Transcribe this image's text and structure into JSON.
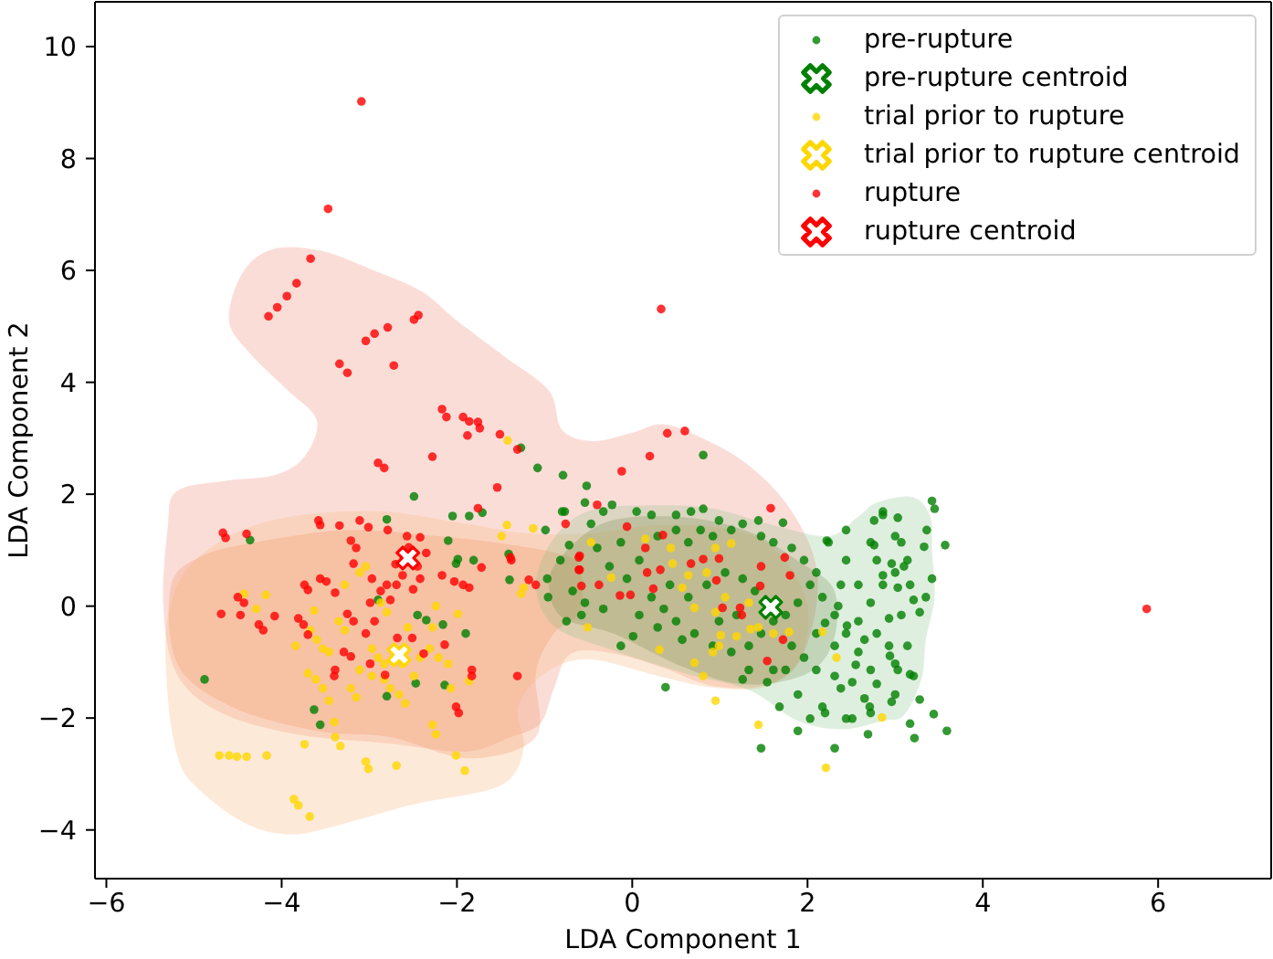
{
  "chart_data": {
    "type": "scatter",
    "xlabel": "LDA Component 1",
    "ylabel": "LDA Component 2",
    "xlim": [
      -6.13,
      7.29
    ],
    "ylim": [
      -4.87,
      10.8
    ],
    "xticks": [
      {
        "value": -6,
        "label": "−6"
      },
      {
        "value": -4,
        "label": "−4"
      },
      {
        "value": -2,
        "label": "−2"
      },
      0,
      2,
      4,
      6
    ],
    "yticks": [
      {
        "value": -4,
        "label": "−4"
      },
      {
        "value": -2,
        "label": "−2"
      },
      0,
      2,
      4,
      6,
      8,
      10
    ],
    "legend": "top right",
    "series": [
      {
        "name": "pre-rupture",
        "color": "#008000",
        "marker": "circle",
        "x": [
          -4.88,
          -4.36,
          -2.49,
          -2.8,
          -2.05,
          -1.86,
          -1.71,
          -1.27,
          -1.08,
          -0.79,
          -0.8,
          -0.72,
          -2.1,
          -1.99,
          -2.01,
          -1.81,
          -1.41,
          -1.4,
          -0.96,
          -0.97,
          -0.75,
          -0.58,
          -2.9,
          -2.45,
          -2.35,
          -2.16,
          -1.9,
          -2.14,
          -2.47,
          -2.8,
          -3.63,
          -3.56,
          0.81,
          -0.52,
          -0.77,
          -0.54,
          -0.33,
          -0.23,
          0.05,
          0.22,
          0.5,
          0.67,
          0.81,
          0.99,
          1.44,
          1.72,
          -0.99,
          -0.13,
          0.01,
          0.38,
          1.47,
          1.89,
          2.31,
          2.69,
          3.17,
          3.22,
          3.59,
          3.42,
          3.45,
          3.57,
          1.26,
          3.36,
          3.33,
          3.28,
          3.21,
          3.14,
          3.17,
          3.28,
          3.44,
          2.86,
          3.03,
          2.76,
          3.07,
          2.76,
          2.22,
          3.1,
          3.17,
          2.96,
          2.86,
          3.03,
          2.93,
          2.79,
          2.94,
          3.03,
          2.79,
          2.96,
          2.65,
          2.71,
          2.51,
          2.38,
          2.2,
          -0.47,
          -0.4,
          -0.26,
          -0.06,
          0.08,
          0.29,
          0.5,
          0.64,
          0.78,
          0.92,
          1.13,
          1.26,
          1.47,
          1.61,
          1.82,
          1.96,
          2.03,
          1.89,
          1.75,
          1.61,
          1.47,
          1.33,
          1.13,
          0.92,
          0.71,
          0.5,
          0.36,
          0.22,
          0.43,
          0.64,
          0.85,
          1.06,
          1.26,
          1.4,
          1.19,
          0.99,
          0.57,
          0.29,
          -0.68,
          -0.82,
          -0.54,
          -0.33,
          -0.13,
          0.08,
          2.17,
          2.31,
          2.44,
          2.58,
          2.72,
          2.86,
          3.0,
          3.14,
          3.07,
          2.93,
          2.72,
          2.51,
          2.31,
          2.1,
          1.96,
          1.75,
          1.54,
          1.89,
          2.17,
          2.44,
          2.72,
          3.0,
          3.21,
          2.86,
          3.0,
          2.72,
          2.79,
          2.24,
          2.44,
          2.1,
          2.38,
          2.58,
          2.31,
          2.58,
          2.1,
          1.82,
          1.61,
          1.33,
          1.68,
          2.03,
          3.0,
          3.35,
          3.42,
          2.44,
          2.45,
          2.65,
          2.2,
          2.55,
          2.35
        ],
        "values": [
          -1.31,
          1.18,
          1.96,
          1.55,
          1.61,
          1.61,
          1.67,
          2.83,
          2.47,
          2.34,
          1.69,
          1.09,
          1.17,
          0.84,
          0.76,
          0.82,
          0.93,
          0.47,
          0.16,
          0.49,
          -0.27,
          -0.16,
          0.11,
          -0.16,
          -0.25,
          -0.33,
          -0.49,
          -1.41,
          -1.38,
          -1.61,
          -1.85,
          -2.12,
          2.7,
          2.15,
          1.69,
          1.85,
          1.69,
          1.81,
          1.69,
          1.63,
          1.63,
          1.69,
          1.74,
          1.53,
          1.53,
          1.49,
          1.36,
          -0.71,
          -0.54,
          -1.45,
          -2.54,
          -2.23,
          -2.54,
          -2.29,
          -2.1,
          -2.36,
          -2.23,
          1.88,
          1.74,
          1.09,
          -1.31,
          1.36,
          1.06,
          -0.11,
          0.11,
          -0.71,
          -1.22,
          -1.67,
          -1.93,
          1.63,
          1.58,
          1.53,
          1.14,
          1.09,
          1.17,
          0.71,
          0.38,
          0.76,
          0.55,
          0.33,
          -0.22,
          -0.49,
          -0.89,
          -1.14,
          -1.39,
          -1.71,
          -1.65,
          -1.8,
          -2.01,
          -1.47,
          -1.91,
          1.47,
          1.04,
          0.71,
          0.49,
          0.82,
          1.25,
          1.36,
          1.14,
          1.36,
          1.25,
          1.36,
          1.47,
          1.25,
          1.14,
          1.04,
          0.82,
          0.38,
          0.06,
          -0.16,
          -0.27,
          -0.49,
          -0.71,
          -0.82,
          -0.71,
          -0.49,
          -0.27,
          -0.05,
          0.16,
          0.38,
          0.16,
          0.38,
          0.6,
          0.49,
          0.27,
          -0.16,
          -0.27,
          -0.6,
          -0.38,
          0.27,
          0.82,
          0.06,
          -0.05,
          1.14,
          -0.16,
          0.16,
          -0.16,
          -0.49,
          -0.27,
          0.06,
          0.38,
          0.6,
          0.82,
          -0.16,
          -0.71,
          -1.14,
          -1.36,
          -1.25,
          -1.14,
          -0.92,
          -1.14,
          -1.36,
          -1.58,
          -1.8,
          -2.01,
          -1.91,
          -1.58,
          -1.25,
          1.69,
          1.25,
          1.14,
          0.82,
          1.14,
          1.36,
          0.6,
          0.38,
          0.38,
          -0.71,
          -0.82,
          -0.49,
          -0.71,
          -1.14,
          -1.14,
          -1.8,
          -2.01,
          -1.03,
          0.16,
          0.49,
          0.82,
          -0.35,
          -0.6,
          -0.3,
          -1.05,
          0.0
        ]
      },
      {
        "name": "pre-rupture centroid",
        "color": "#008000",
        "marker": "cross",
        "x": [
          1.58
        ],
        "values": [
          -0.02
        ]
      },
      {
        "name": "trial prior to rupture",
        "color": "#ffd700",
        "marker": "circle",
        "x": [
          -4.71,
          -4.6,
          -4.51,
          -4.4,
          -4.17,
          -3.74,
          -3.86,
          -3.81,
          -3.68,
          -3.4,
          -3.39,
          -3.33,
          -3.04,
          -3.01,
          -2.69,
          -2.28,
          -2.24,
          -2.01,
          -1.91,
          -4.43,
          -4.29,
          -4.18,
          -3.63,
          -3.67,
          -3.6,
          -3.53,
          -3.7,
          -3.61,
          -3.53,
          -3.46,
          -3.35,
          -3.28,
          -3.21,
          -3.15,
          -3.28,
          -3.11,
          -3.04,
          -2.87,
          -2.8,
          -2.97,
          -2.9,
          -2.97,
          -2.83,
          -2.76,
          -2.66,
          -2.59,
          -2.42,
          -2.31,
          -2.21,
          -2.1,
          -2.24,
          -1.99,
          -2.56,
          -2.07,
          -1.86,
          -1.49,
          -1.43,
          -1.13,
          -1.42,
          -1.24,
          -1.27,
          -3.84,
          -0.47,
          0.15,
          0.44,
          0.95,
          1.13,
          -0.24,
          0.46,
          0.64,
          0.85,
          0.57,
          0.71,
          0.95,
          1.06,
          1.33,
          1.19,
          1.35,
          1.44,
          1.61,
          1.79,
          2.17,
          2.33,
          1.01,
          0.99,
          0.92,
          0.71,
          0.81,
          0.31,
          0.95,
          1.44,
          2.21,
          -0.51,
          2.85,
          -3.46,
          -3.11,
          -2.83,
          -2.49,
          -2.62,
          -2.28
        ],
        "values": [
          -2.67,
          -2.67,
          -2.69,
          -2.69,
          -2.67,
          -2.47,
          -3.45,
          -3.56,
          -3.76,
          -2.07,
          -2.34,
          -2.5,
          -2.78,
          -2.91,
          -2.85,
          -2.12,
          -2.29,
          -2.67,
          -2.94,
          0.22,
          -0.05,
          0.2,
          -0.08,
          -0.43,
          -0.6,
          -0.76,
          -1.2,
          -1.31,
          -1.47,
          -1.69,
          -0.27,
          -0.43,
          -1.47,
          -1.63,
          0.38,
          0.6,
          0.71,
          0.06,
          -0.11,
          -0.76,
          -0.92,
          -1.25,
          -1.31,
          -1.47,
          -1.58,
          -1.74,
          -0.92,
          -0.76,
          -0.92,
          -1.03,
          0.0,
          -0.14,
          -0.38,
          -1.47,
          -1.34,
          1.25,
          1.45,
          1.39,
          2.96,
          0.33,
          0.22,
          -0.71,
          1.14,
          1.2,
          1.04,
          1.04,
          1.12,
          0.51,
          0.76,
          0.55,
          0.6,
          0.33,
          -0.03,
          -0.11,
          0.16,
          0.06,
          -0.54,
          -0.41,
          -0.38,
          -0.49,
          -0.46,
          -0.46,
          -0.92,
          -0.52,
          -0.71,
          -0.82,
          -1.01,
          -1.25,
          -0.78,
          -1.69,
          -2.12,
          -2.89,
          -0.38,
          -1.99,
          -0.82,
          -1.14,
          -1.03,
          -1.25,
          -1.03,
          -0.38
        ]
      },
      {
        "name": "trial prior to rupture centroid",
        "color": "#ffd700",
        "marker": "cross",
        "x": [
          -2.66
        ],
        "values": [
          -0.87
        ]
      },
      {
        "name": "rupture",
        "color": "#ff0000",
        "marker": "circle",
        "x": [
          -3.09,
          -3.47,
          -3.67,
          -3.83,
          -3.94,
          -4.05,
          -4.15,
          -3.04,
          -2.94,
          -2.79,
          -2.49,
          -2.44,
          -3.34,
          -3.25,
          -2.72,
          -2.17,
          -2.12,
          -1.93,
          -1.86,
          -1.76,
          -1.74,
          -1.88,
          -1.51,
          -1.31,
          -2.28,
          0.33,
          5.87,
          0.4,
          0.6,
          0.2,
          -0.12,
          -0.4,
          -0.76,
          1.58,
          -0.06,
          0.35,
          -0.6,
          -0.6,
          0.15,
          0.32,
          0.17,
          0.67,
          0.81,
          0.99,
          1.47,
          1.74,
          1.8,
          0.96,
          1.46,
          -0.14,
          -0.02,
          -0.38,
          0.24,
          1.03,
          1.23,
          1.25,
          1.72,
          1.54,
          -2.9,
          -2.83,
          -1.54,
          -1.76,
          -4.67,
          -4.64,
          -4.4,
          -3.58,
          -3.56,
          -3.34,
          -3.11,
          -3.01,
          -2.79,
          -3.21,
          -3.15,
          -3.18,
          -2.57,
          -2.42,
          -2.45,
          -2.42,
          -2.62,
          -2.69,
          -2.97,
          -2.87,
          -2.99,
          -2.8,
          -2.76,
          -2.17,
          -2.03,
          -1.93,
          -1.86,
          -1.72,
          -1.39,
          -1.38,
          -1.18,
          -1.1,
          -0.61,
          -0.61,
          -0.58,
          -3.74,
          -3.7,
          -3.56,
          -3.49,
          -3.39,
          -4.5,
          -4.43,
          -4.47,
          -4.69,
          -4.26,
          -4.21,
          -4.08,
          -3.81,
          -3.75,
          -3.7,
          -3.25,
          -3.18,
          -3.04,
          -2.94,
          -3.29,
          -3.21,
          -3.39,
          -3.4,
          -2.68,
          -2.51,
          -2.38,
          -2.14,
          -2.99,
          -2.82,
          -1.83,
          -1.83,
          -1.31,
          -2.01,
          -1.98,
          -2.55,
          -2.35,
          -2.7,
          -2.5
        ],
        "values": [
          9.02,
          7.1,
          6.21,
          5.77,
          5.54,
          5.34,
          5.18,
          4.74,
          4.87,
          4.98,
          5.12,
          5.2,
          4.33,
          4.17,
          4.3,
          3.52,
          3.38,
          3.38,
          3.3,
          3.29,
          3.18,
          3.05,
          3.07,
          2.8,
          2.67,
          5.31,
          -0.05,
          3.09,
          3.13,
          2.68,
          2.41,
          1.81,
          1.47,
          1.75,
          1.42,
          1.27,
          0.9,
          0.65,
          1.04,
          0.65,
          0.6,
          0.76,
          0.84,
          0.85,
          0.71,
          0.87,
          0.55,
          0.46,
          0.36,
          0.19,
          0.2,
          0.38,
          0.31,
          -0.03,
          -0.03,
          -0.16,
          -0.6,
          -0.98,
          2.56,
          2.47,
          2.12,
          1.75,
          1.31,
          1.22,
          1.29,
          1.53,
          1.45,
          1.44,
          1.53,
          1.41,
          1.36,
          1.17,
          1.04,
          0.76,
          1.25,
          1.23,
          0.71,
          0.49,
          0.55,
          0.38,
          0.49,
          0.27,
          0.06,
          0.38,
          0.11,
          0.55,
          0.44,
          0.38,
          0.33,
          0.69,
          0.87,
          0.82,
          0.47,
          0.38,
          0.87,
          0.65,
          0.36,
          0.38,
          0.29,
          0.49,
          0.44,
          0.24,
          0.16,
          0.06,
          -0.16,
          -0.14,
          -0.33,
          -0.43,
          -0.18,
          -0.22,
          -0.33,
          -0.51,
          -0.14,
          -0.27,
          -0.49,
          -0.27,
          -0.82,
          -0.9,
          -1.14,
          -1.25,
          -0.57,
          -0.57,
          -0.85,
          -0.69,
          -1.03,
          -1.23,
          -1.14,
          -1.25,
          -1.25,
          -1.8,
          -1.91,
          1.05,
          0.95,
          0.75,
          0.3
        ]
      },
      {
        "name": "rupture centroid",
        "color": "#ff0000",
        "marker": "cross",
        "x": [
          -2.56
        ],
        "values": [
          0.86
        ]
      }
    ]
  }
}
